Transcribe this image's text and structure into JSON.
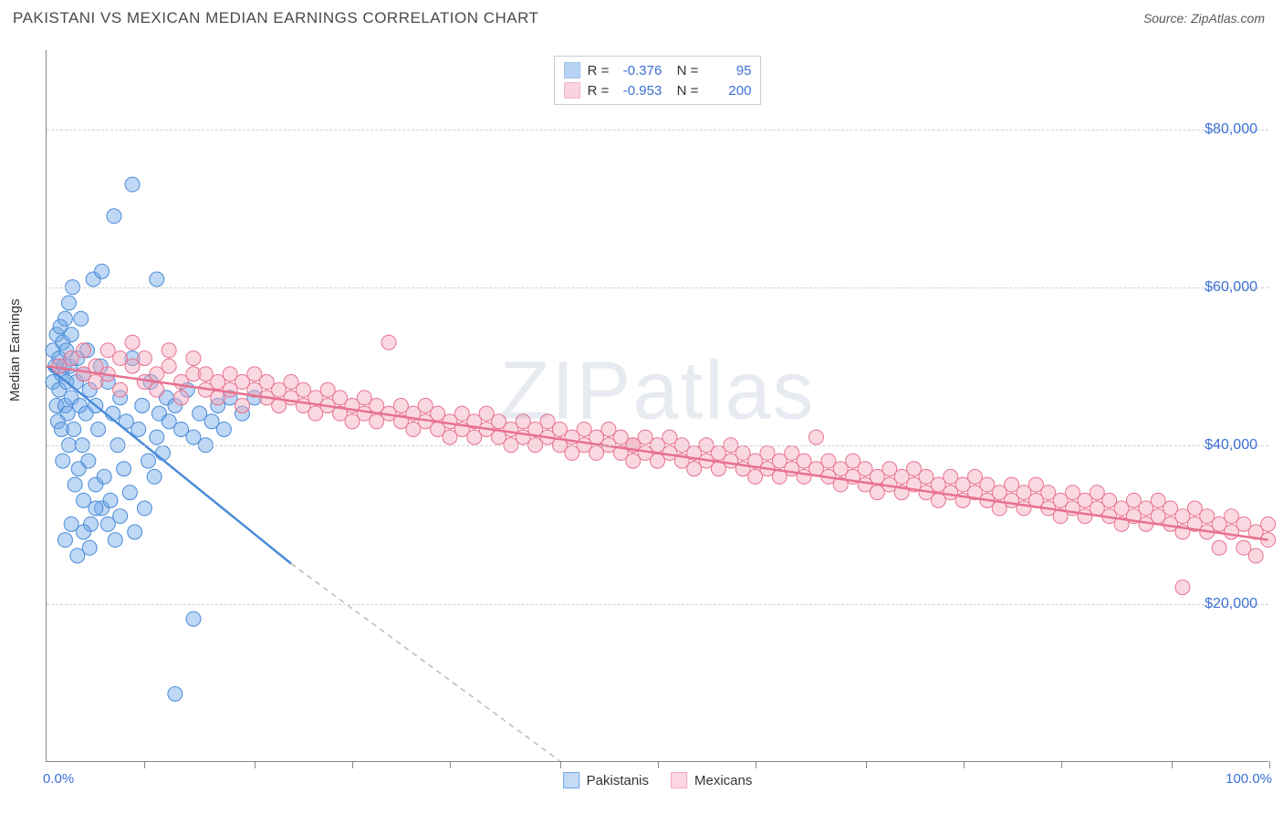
{
  "header": {
    "title": "PAKISTANI VS MEXICAN MEDIAN EARNINGS CORRELATION CHART",
    "source": "Source: ZipAtlas.com"
  },
  "chart": {
    "type": "scatter",
    "ylabel": "Median Earnings",
    "watermark": "ZIPatlas",
    "background_color": "#ffffff",
    "grid_color": "#d0d0d0",
    "axis_color": "#888888",
    "label_color": "#3b6fd6",
    "xlim": [
      0,
      100
    ],
    "ylim": [
      0,
      90000
    ],
    "ytick_values": [
      20000,
      40000,
      60000,
      80000
    ],
    "ytick_labels": [
      "$20,000",
      "$40,000",
      "$60,000",
      "$80,000"
    ],
    "xaxis_left_label": "0.0%",
    "xaxis_right_label": "100.0%",
    "xtick_positions": [
      8,
      17,
      25,
      33,
      42,
      50,
      58,
      67,
      75,
      83,
      92,
      100
    ],
    "marker_radius": 8,
    "marker_opacity": 0.45,
    "series": [
      {
        "name": "Pakistanis",
        "color": "#6fa8e8",
        "stroke": "#4a8bd8",
        "R": "-0.376",
        "N": "95",
        "regression": {
          "x1": 0,
          "y1": 50000,
          "x2": 20,
          "y2": 25000,
          "solid_until_x": 20,
          "dash_to_x": 42,
          "dash_to_y": 0
        },
        "points": [
          [
            0.5,
            48000
          ],
          [
            0.5,
            52000
          ],
          [
            0.7,
            50000
          ],
          [
            0.8,
            45000
          ],
          [
            0.8,
            54000
          ],
          [
            0.9,
            43000
          ],
          [
            1.0,
            51000
          ],
          [
            1.0,
            47000
          ],
          [
            1.1,
            55000
          ],
          [
            1.2,
            49000
          ],
          [
            1.2,
            42000
          ],
          [
            1.3,
            53000
          ],
          [
            1.3,
            38000
          ],
          [
            1.4,
            50000
          ],
          [
            1.5,
            56000
          ],
          [
            1.5,
            45000
          ],
          [
            1.6,
            48000
          ],
          [
            1.6,
            52000
          ],
          [
            1.7,
            44000
          ],
          [
            1.8,
            58000
          ],
          [
            1.8,
            40000
          ],
          [
            1.9,
            50000
          ],
          [
            2.0,
            46000
          ],
          [
            2.0,
            54000
          ],
          [
            2.1,
            60000
          ],
          [
            2.2,
            42000
          ],
          [
            2.3,
            35000
          ],
          [
            2.4,
            48000
          ],
          [
            2.5,
            51000
          ],
          [
            2.6,
            37000
          ],
          [
            2.7,
            45000
          ],
          [
            2.8,
            56000
          ],
          [
            2.9,
            40000
          ],
          [
            3.0,
            49000
          ],
          [
            3.0,
            33000
          ],
          [
            3.2,
            44000
          ],
          [
            3.3,
            52000
          ],
          [
            3.4,
            38000
          ],
          [
            3.5,
            47000
          ],
          [
            3.6,
            30000
          ],
          [
            3.8,
            61000
          ],
          [
            4.0,
            45000
          ],
          [
            4.0,
            35000
          ],
          [
            4.2,
            42000
          ],
          [
            4.4,
            50000
          ],
          [
            4.5,
            32000
          ],
          [
            4.7,
            36000
          ],
          [
            5.0,
            48000
          ],
          [
            5.0,
            30000
          ],
          [
            5.2,
            33000
          ],
          [
            5.4,
            44000
          ],
          [
            5.6,
            28000
          ],
          [
            5.8,
            40000
          ],
          [
            6.0,
            46000
          ],
          [
            6.0,
            31000
          ],
          [
            6.3,
            37000
          ],
          [
            6.5,
            43000
          ],
          [
            6.8,
            34000
          ],
          [
            7.0,
            51000
          ],
          [
            7.2,
            29000
          ],
          [
            7.5,
            42000
          ],
          [
            7.8,
            45000
          ],
          [
            8.0,
            32000
          ],
          [
            8.3,
            38000
          ],
          [
            8.5,
            48000
          ],
          [
            8.8,
            36000
          ],
          [
            9.0,
            41000
          ],
          [
            9.2,
            44000
          ],
          [
            9.5,
            39000
          ],
          [
            9.8,
            46000
          ],
          [
            10.0,
            43000
          ],
          [
            10.5,
            45000
          ],
          [
            11.0,
            42000
          ],
          [
            11.5,
            47000
          ],
          [
            12.0,
            41000
          ],
          [
            12.5,
            44000
          ],
          [
            13.0,
            40000
          ],
          [
            13.5,
            43000
          ],
          [
            14.0,
            45000
          ],
          [
            14.5,
            42000
          ],
          [
            1.5,
            28000
          ],
          [
            2.0,
            30000
          ],
          [
            2.5,
            26000
          ],
          [
            3.0,
            29000
          ],
          [
            3.5,
            27000
          ],
          [
            4.0,
            32000
          ],
          [
            7.0,
            73000
          ],
          [
            5.5,
            69000
          ],
          [
            4.5,
            62000
          ],
          [
            9.0,
            61000
          ],
          [
            12.0,
            18000
          ],
          [
            10.5,
            8500
          ],
          [
            15.0,
            46000
          ],
          [
            16.0,
            44000
          ],
          [
            17.0,
            46000
          ]
        ]
      },
      {
        "name": "Mexicans",
        "color": "#f5a8bc",
        "stroke": "#e8718f",
        "R": "-0.953",
        "N": "200",
        "regression": {
          "x1": 0,
          "y1": 50000,
          "x2": 100,
          "y2": 28000
        },
        "points": [
          [
            1,
            50000
          ],
          [
            2,
            51000
          ],
          [
            3,
            49000
          ],
          [
            3,
            52000
          ],
          [
            4,
            50000
          ],
          [
            4,
            48000
          ],
          [
            5,
            52000
          ],
          [
            5,
            49000
          ],
          [
            6,
            51000
          ],
          [
            6,
            47000
          ],
          [
            7,
            50000
          ],
          [
            7,
            53000
          ],
          [
            8,
            48000
          ],
          [
            8,
            51000
          ],
          [
            9,
            49000
          ],
          [
            9,
            47000
          ],
          [
            10,
            50000
          ],
          [
            10,
            52000
          ],
          [
            11,
            48000
          ],
          [
            11,
            46000
          ],
          [
            12,
            49000
          ],
          [
            12,
            51000
          ],
          [
            13,
            47000
          ],
          [
            13,
            49000
          ],
          [
            14,
            48000
          ],
          [
            14,
            46000
          ],
          [
            15,
            49000
          ],
          [
            15,
            47000
          ],
          [
            16,
            48000
          ],
          [
            16,
            45000
          ],
          [
            17,
            47000
          ],
          [
            17,
            49000
          ],
          [
            18,
            46000
          ],
          [
            18,
            48000
          ],
          [
            19,
            47000
          ],
          [
            19,
            45000
          ],
          [
            20,
            46000
          ],
          [
            20,
            48000
          ],
          [
            21,
            45000
          ],
          [
            21,
            47000
          ],
          [
            22,
            46000
          ],
          [
            22,
            44000
          ],
          [
            23,
            45000
          ],
          [
            23,
            47000
          ],
          [
            24,
            44000
          ],
          [
            24,
            46000
          ],
          [
            25,
            45000
          ],
          [
            25,
            43000
          ],
          [
            26,
            44000
          ],
          [
            26,
            46000
          ],
          [
            27,
            43000
          ],
          [
            27,
            45000
          ],
          [
            28,
            44000
          ],
          [
            28,
            53000
          ],
          [
            29,
            43000
          ],
          [
            29,
            45000
          ],
          [
            30,
            44000
          ],
          [
            30,
            42000
          ],
          [
            31,
            43000
          ],
          [
            31,
            45000
          ],
          [
            32,
            42000
          ],
          [
            32,
            44000
          ],
          [
            33,
            43000
          ],
          [
            33,
            41000
          ],
          [
            34,
            42000
          ],
          [
            34,
            44000
          ],
          [
            35,
            43000
          ],
          [
            35,
            41000
          ],
          [
            36,
            42000
          ],
          [
            36,
            44000
          ],
          [
            37,
            41000
          ],
          [
            37,
            43000
          ],
          [
            38,
            42000
          ],
          [
            38,
            40000
          ],
          [
            39,
            41000
          ],
          [
            39,
            43000
          ],
          [
            40,
            42000
          ],
          [
            40,
            40000
          ],
          [
            41,
            41000
          ],
          [
            41,
            43000
          ],
          [
            42,
            40000
          ],
          [
            42,
            42000
          ],
          [
            43,
            41000
          ],
          [
            43,
            39000
          ],
          [
            44,
            40000
          ],
          [
            44,
            42000
          ],
          [
            45,
            41000
          ],
          [
            45,
            39000
          ],
          [
            46,
            40000
          ],
          [
            46,
            42000
          ],
          [
            47,
            39000
          ],
          [
            47,
            41000
          ],
          [
            48,
            40000
          ],
          [
            48,
            38000
          ],
          [
            49,
            39000
          ],
          [
            49,
            41000
          ],
          [
            50,
            40000
          ],
          [
            50,
            38000
          ],
          [
            51,
            39000
          ],
          [
            51,
            41000
          ],
          [
            52,
            38000
          ],
          [
            52,
            40000
          ],
          [
            53,
            39000
          ],
          [
            53,
            37000
          ],
          [
            54,
            38000
          ],
          [
            54,
            40000
          ],
          [
            55,
            39000
          ],
          [
            55,
            37000
          ],
          [
            56,
            38000
          ],
          [
            56,
            40000
          ],
          [
            57,
            37000
          ],
          [
            57,
            39000
          ],
          [
            58,
            38000
          ],
          [
            58,
            36000
          ],
          [
            59,
            37000
          ],
          [
            59,
            39000
          ],
          [
            60,
            38000
          ],
          [
            60,
            36000
          ],
          [
            61,
            37000
          ],
          [
            61,
            39000
          ],
          [
            62,
            36000
          ],
          [
            62,
            38000
          ],
          [
            63,
            37000
          ],
          [
            63,
            41000
          ],
          [
            64,
            36000
          ],
          [
            64,
            38000
          ],
          [
            65,
            37000
          ],
          [
            65,
            35000
          ],
          [
            66,
            36000
          ],
          [
            66,
            38000
          ],
          [
            67,
            35000
          ],
          [
            67,
            37000
          ],
          [
            68,
            36000
          ],
          [
            68,
            34000
          ],
          [
            69,
            35000
          ],
          [
            69,
            37000
          ],
          [
            70,
            36000
          ],
          [
            70,
            34000
          ],
          [
            71,
            35000
          ],
          [
            71,
            37000
          ],
          [
            72,
            34000
          ],
          [
            72,
            36000
          ],
          [
            73,
            35000
          ],
          [
            73,
            33000
          ],
          [
            74,
            34000
          ],
          [
            74,
            36000
          ],
          [
            75,
            35000
          ],
          [
            75,
            33000
          ],
          [
            76,
            34000
          ],
          [
            76,
            36000
          ],
          [
            77,
            33000
          ],
          [
            77,
            35000
          ],
          [
            78,
            34000
          ],
          [
            78,
            32000
          ],
          [
            79,
            33000
          ],
          [
            79,
            35000
          ],
          [
            80,
            34000
          ],
          [
            80,
            32000
          ],
          [
            81,
            33000
          ],
          [
            81,
            35000
          ],
          [
            82,
            32000
          ],
          [
            82,
            34000
          ],
          [
            83,
            33000
          ],
          [
            83,
            31000
          ],
          [
            84,
            32000
          ],
          [
            84,
            34000
          ],
          [
            85,
            33000
          ],
          [
            85,
            31000
          ],
          [
            86,
            32000
          ],
          [
            86,
            34000
          ],
          [
            87,
            31000
          ],
          [
            87,
            33000
          ],
          [
            88,
            32000
          ],
          [
            88,
            30000
          ],
          [
            89,
            31000
          ],
          [
            89,
            33000
          ],
          [
            90,
            32000
          ],
          [
            90,
            30000
          ],
          [
            91,
            31000
          ],
          [
            91,
            33000
          ],
          [
            92,
            30000
          ],
          [
            92,
            32000
          ],
          [
            93,
            31000
          ],
          [
            93,
            29000
          ],
          [
            94,
            30000
          ],
          [
            94,
            32000
          ],
          [
            95,
            31000
          ],
          [
            95,
            29000
          ],
          [
            96,
            30000
          ],
          [
            96,
            27000
          ],
          [
            97,
            29000
          ],
          [
            97,
            31000
          ],
          [
            98,
            30000
          ],
          [
            98,
            27000
          ],
          [
            99,
            29000
          ],
          [
            99,
            26000
          ],
          [
            100,
            28000
          ],
          [
            100,
            30000
          ],
          [
            93,
            22000
          ],
          [
            48,
            40000
          ]
        ]
      }
    ],
    "legend_bottom": [
      {
        "label": "Pakistanis",
        "fill": "#c5dbf5",
        "border": "#6fa8e8"
      },
      {
        "label": "Mexicans",
        "fill": "#fbd7e1",
        "border": "#f5a8bc"
      }
    ]
  }
}
